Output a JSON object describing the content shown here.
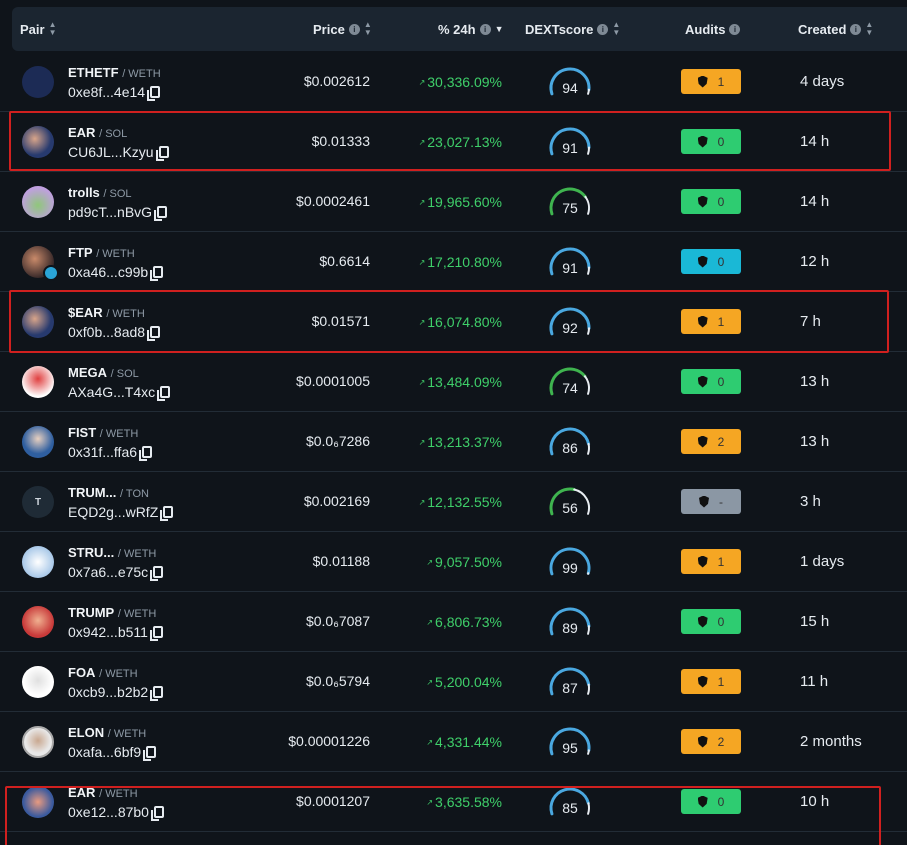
{
  "header": {
    "pair": "Pair",
    "price": "Price",
    "change": "% 24h",
    "dext": "DEXTscore",
    "audits": "Audits",
    "created": "Created"
  },
  "colors": {
    "green": "#3fcf6a",
    "audit_orange": "#f5a623",
    "audit_green": "#2ecc71",
    "audit_cyan": "#1ab8d6",
    "audit_gray": "#8b97a4",
    "gauge_blue": "#4aa8e0",
    "gauge_green": "#3fb44f",
    "highlight": "#d0201f"
  },
  "rows": [
    {
      "symbol": "ETHETF",
      "quote": "/ WETH",
      "addr": "0xe8f...4e14",
      "price": "$0.002612",
      "change": "30,336.09%",
      "score": "94",
      "audit_value": "1",
      "audit_color": "orange",
      "created": "4 days",
      "avatar": "eth-etf-logo",
      "highlighted": false
    },
    {
      "symbol": "EAR",
      "quote": "/ SOL",
      "addr": "CU6JL...Kzyu",
      "price": "$0.01333",
      "change": "23,027.13%",
      "score": "91",
      "audit_value": "0",
      "audit_color": "green",
      "created": "14 h",
      "avatar": "trump-ear-logo",
      "highlighted": true
    },
    {
      "symbol": "trolls",
      "quote": "/ SOL",
      "addr": "pd9cT...nBvG",
      "price": "$0.0002461",
      "change": "19,965.60%",
      "score": "75",
      "audit_value": "0",
      "audit_color": "green",
      "created": "14 h",
      "avatar": "troll-logo",
      "highlighted": false
    },
    {
      "symbol": "FTP",
      "quote": "/ WETH",
      "addr": "0xa46...c99b",
      "price": "$0.6614",
      "change": "17,210.80%",
      "score": "91",
      "audit_value": "0",
      "audit_color": "cyan",
      "created": "12 h",
      "avatar": "ftp-logo",
      "highlighted": false
    },
    {
      "symbol": "$EAR",
      "quote": "/ WETH",
      "addr": "0xf0b...8ad8",
      "price": "$0.01571",
      "change": "16,074.80%",
      "score": "92",
      "audit_value": "1",
      "audit_color": "orange",
      "created": "7 h",
      "avatar": "trump-ear-logo",
      "highlighted": true
    },
    {
      "symbol": "MEGA",
      "quote": "/ SOL",
      "addr": "AXa4G...T4xc",
      "price": "$0.0001005",
      "change": "13,484.09%",
      "score": "74",
      "audit_value": "0",
      "audit_color": "green",
      "created": "13 h",
      "avatar": "mega-logo",
      "highlighted": false
    },
    {
      "symbol": "FIST",
      "quote": "/ WETH",
      "addr": "0x31f...ffa6",
      "price": "$0.0₆7286",
      "change": "13,213.37%",
      "score": "86",
      "audit_value": "2",
      "audit_color": "orange",
      "created": "13 h",
      "avatar": "fist-logo",
      "highlighted": false
    },
    {
      "symbol": "TRUM...",
      "quote": "/ TON",
      "addr": "EQD2g...wRfZ",
      "price": "$0.002169",
      "change": "12,132.55%",
      "score": "56",
      "audit_value": "-",
      "audit_color": "gray",
      "created": "3 h",
      "avatar": "t-letter-logo",
      "highlighted": false
    },
    {
      "symbol": "STRU...",
      "quote": "/ WETH",
      "addr": "0x7a6...e75c",
      "price": "$0.01188",
      "change": "9,057.50%",
      "score": "99",
      "audit_value": "1",
      "audit_color": "orange",
      "created": "1 days",
      "avatar": "stru-logo",
      "highlighted": false
    },
    {
      "symbol": "TRUMP",
      "quote": "/ WETH",
      "addr": "0x942...b511",
      "price": "$0.0₆7087",
      "change": "6,806.73%",
      "score": "89",
      "audit_value": "0",
      "audit_color": "green",
      "created": "15 h",
      "avatar": "trump-logo",
      "highlighted": false
    },
    {
      "symbol": "FOA",
      "quote": "/ WETH",
      "addr": "0xcb9...b2b2",
      "price": "$0.0₆5794",
      "change": "5,200.04%",
      "score": "87",
      "audit_value": "1",
      "audit_color": "orange",
      "created": "11 h",
      "avatar": "foa-logo",
      "highlighted": false
    },
    {
      "symbol": "ELON",
      "quote": "/ WETH",
      "addr": "0xafa...6bf9",
      "price": "$0.00001226",
      "change": "4,331.44%",
      "score": "95",
      "audit_value": "2",
      "audit_color": "orange",
      "created": "2 months",
      "avatar": "elon-logo",
      "highlighted": false
    },
    {
      "symbol": "EAR",
      "quote": "/ WETH",
      "addr": "0xe12...87b0",
      "price": "$0.0001207",
      "change": "3,635.58%",
      "score": "85",
      "audit_value": "0",
      "audit_color": "green",
      "created": "10 h",
      "avatar": "ear-logo",
      "highlighted": true
    }
  ]
}
